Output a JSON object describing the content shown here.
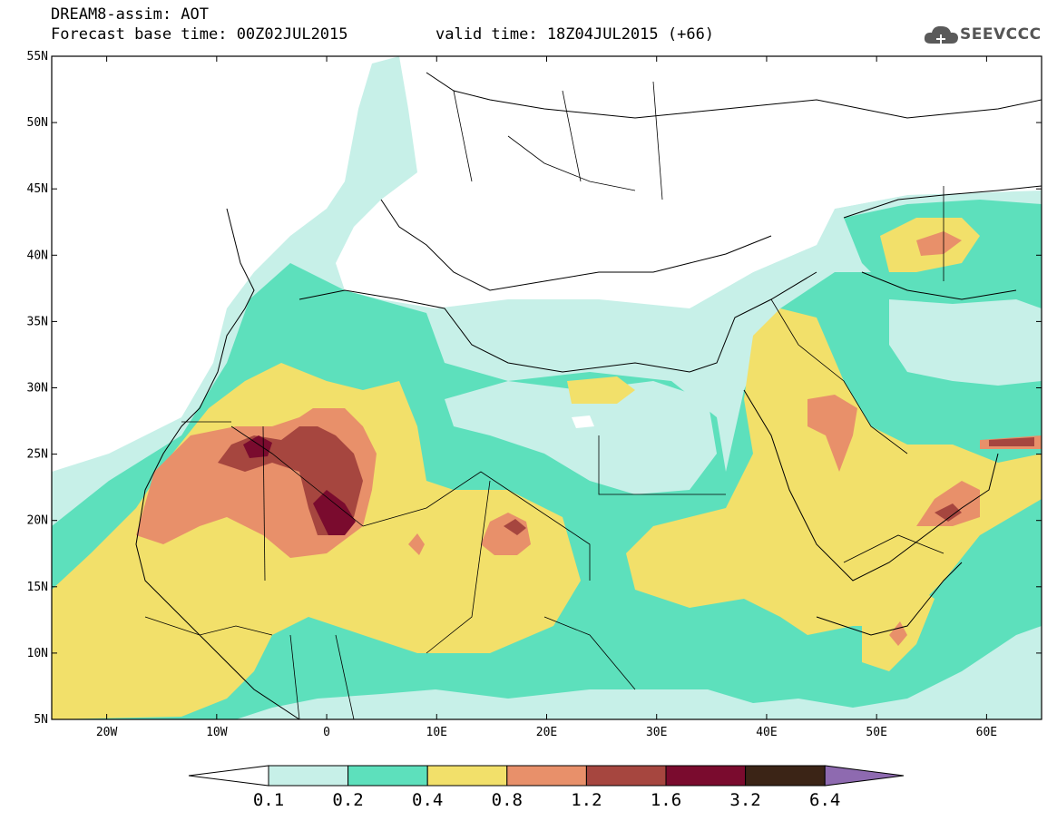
{
  "header": {
    "title": "DREAM8-assim: AOT",
    "base_time": "Forecast base time: 00Z02JUL2015",
    "valid_time": "valid time: 18Z04JUL2015 (+66)",
    "logo_text": "SEEVCCC"
  },
  "map": {
    "lon_range": [
      -25,
      65
    ],
    "lat_range": [
      5,
      55
    ],
    "lat_ticks": [
      "55N",
      "50N",
      "45N",
      "40N",
      "35N",
      "30N",
      "25N",
      "20N",
      "15N",
      "10N",
      "5N"
    ],
    "lon_ticks": [
      "20W",
      "10W",
      "0",
      "10E",
      "20E",
      "30E",
      "40E",
      "50E",
      "60E"
    ]
  },
  "colorbar": {
    "labels": [
      "0.1",
      "0.2",
      "0.4",
      "0.8",
      "1.2",
      "1.6",
      "3.2",
      "6.4"
    ],
    "colors": [
      "#ffffff",
      "#c7f0e8",
      "#5de0bc",
      "#f2e06a",
      "#e8906a",
      "#a6463f",
      "#7a0b2e",
      "#3b2416",
      "#8e6ab0"
    ]
  },
  "legend_colors": {
    "c01": "#c7f0e8",
    "c02": "#5de0bc",
    "c04": "#f2e06a",
    "c08": "#e8906a",
    "c12": "#a6463f",
    "c16": "#7a0b2e"
  }
}
